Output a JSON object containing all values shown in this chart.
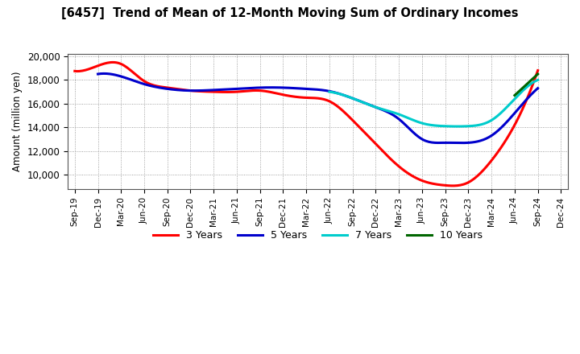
{
  "title": "[6457]  Trend of Mean of 12-Month Moving Sum of Ordinary Incomes",
  "ylabel": "Amount (million yen)",
  "background_color": "#ffffff",
  "grid_color": "#888888",
  "x_labels": [
    "Sep-19",
    "Dec-19",
    "Mar-20",
    "Jun-20",
    "Sep-20",
    "Dec-20",
    "Mar-21",
    "Jun-21",
    "Sep-21",
    "Dec-21",
    "Mar-22",
    "Jun-22",
    "Sep-22",
    "Dec-22",
    "Mar-23",
    "Jun-23",
    "Sep-23",
    "Dec-23",
    "Mar-24",
    "Jun-24",
    "Sep-24",
    "Dec-24"
  ],
  "series": {
    "3 Years": {
      "color": "#ff0000",
      "data": [
        18750,
        19200,
        19350,
        17900,
        17350,
        17100,
        17000,
        17000,
        17100,
        16750,
        16500,
        16200,
        14600,
        12600,
        10700,
        9500,
        9100,
        9350,
        11200,
        14200,
        18800,
        null
      ]
    },
    "5 Years": {
      "color": "#0000cc",
      "data": [
        null,
        18500,
        18300,
        17650,
        17250,
        17100,
        17150,
        17250,
        17350,
        17350,
        17250,
        17050,
        16450,
        15700,
        14700,
        13000,
        12700,
        12700,
        13300,
        15200,
        17300,
        null
      ]
    },
    "7 Years": {
      "color": "#00cccc",
      "data": [
        null,
        null,
        null,
        null,
        null,
        null,
        null,
        null,
        null,
        null,
        null,
        17000,
        16450,
        15700,
        15100,
        14350,
        14100,
        14100,
        14600,
        16400,
        18000,
        null
      ]
    },
    "10 Years": {
      "color": "#006600",
      "data": [
        null,
        null,
        null,
        null,
        null,
        null,
        null,
        null,
        null,
        null,
        null,
        null,
        null,
        null,
        null,
        null,
        null,
        null,
        null,
        16700,
        18500,
        null
      ]
    }
  },
  "ylim": [
    8800,
    20200
  ],
  "yticks": [
    10000,
    12000,
    14000,
    16000,
    18000,
    20000
  ],
  "legend_order": [
    "3 Years",
    "5 Years",
    "7 Years",
    "10 Years"
  ]
}
